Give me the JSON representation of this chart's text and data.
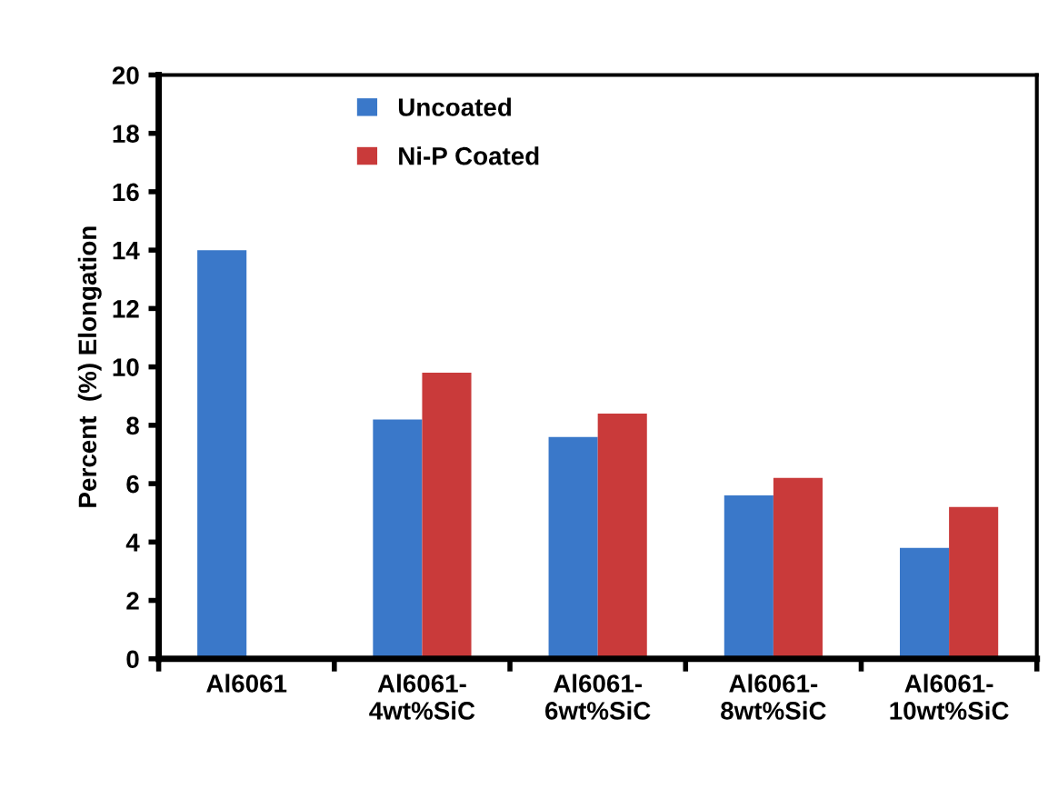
{
  "chart_data": {
    "type": "bar",
    "ylabel": "Percent  (%) Elongation",
    "categories": [
      "Al6061",
      "Al6061-\n4wt%SiC",
      "Al6061-\n6wt%SiC",
      "Al6061-\n8wt%SiC",
      "Al6061-\n10wt%SiC"
    ],
    "series": [
      {
        "name": "Uncoated",
        "color": "#3a78c9",
        "values": [
          14.0,
          8.2,
          7.6,
          5.6,
          3.8
        ]
      },
      {
        "name": "Ni-P Coated",
        "color": "#c93a3a",
        "values": [
          null,
          9.8,
          8.4,
          6.2,
          5.2
        ]
      }
    ],
    "ylim": [
      0,
      20
    ],
    "yticks": [
      0,
      2,
      4,
      6,
      8,
      10,
      12,
      14,
      16,
      18,
      20
    ],
    "grid": false,
    "legend": "top left"
  }
}
